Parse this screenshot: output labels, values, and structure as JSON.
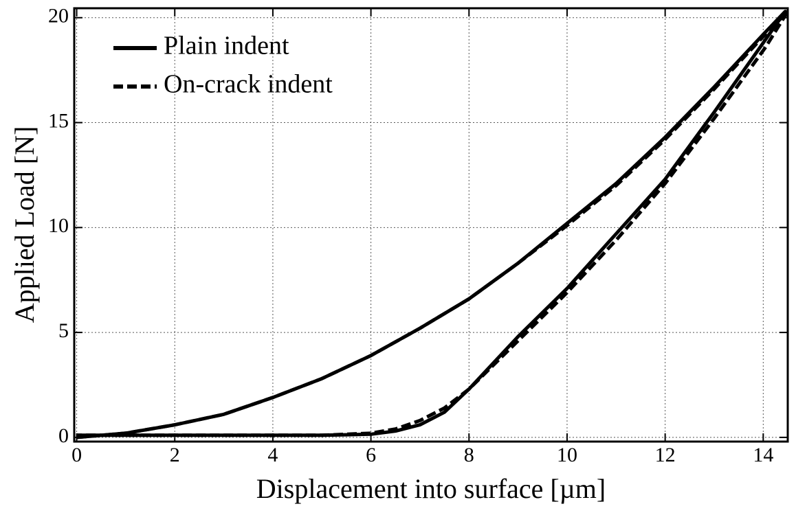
{
  "chart_data": {
    "type": "line",
    "xlabel": "Displacement into surface [µm]",
    "ylabel": "Applied Load [N]",
    "xlim": [
      -0.05,
      14.5
    ],
    "ylim": [
      -0.2,
      20.45
    ],
    "xticks": [
      0,
      2,
      4,
      6,
      8,
      10,
      12,
      14
    ],
    "yticks": [
      0,
      5,
      10,
      15,
      20
    ],
    "grid": true,
    "legend": "upper left",
    "series": [
      {
        "name": "Plain indent",
        "color": "#000000",
        "dash": "solid",
        "x": [
          0,
          1,
          2,
          3,
          4,
          5,
          6,
          7,
          8,
          9,
          10,
          11,
          12,
          13,
          14,
          14.45,
          14,
          13,
          12,
          11,
          10,
          9,
          8,
          7.5,
          7,
          6.5,
          6,
          5,
          3,
          0
        ],
        "values": [
          0,
          0.2,
          0.6,
          1.1,
          1.9,
          2.8,
          3.9,
          5.2,
          6.6,
          8.3,
          10.2,
          12.1,
          14.3,
          16.7,
          19.2,
          20.3,
          18.8,
          15.5,
          12.3,
          9.7,
          7.1,
          4.8,
          2.3,
          1.2,
          0.6,
          0.3,
          0.15,
          0.1,
          0.1,
          0.1
        ]
      },
      {
        "name": "On-crack indent",
        "color": "#000000",
        "dash": "dashed",
        "x": [
          0,
          1,
          2,
          3,
          4,
          5,
          6,
          7,
          8,
          9,
          10,
          11,
          12,
          13,
          14,
          14.5,
          14.05,
          13,
          12,
          11,
          10,
          9,
          8,
          7.5,
          7,
          6.5,
          6,
          5,
          3,
          0
        ],
        "values": [
          0,
          0.2,
          0.6,
          1.1,
          1.9,
          2.8,
          3.9,
          5.2,
          6.6,
          8.3,
          10.1,
          12.0,
          14.2,
          16.6,
          19.1,
          20.3,
          18.6,
          15.2,
          12.1,
          9.4,
          6.9,
          4.6,
          2.3,
          1.4,
          0.8,
          0.4,
          0.2,
          0.1,
          0.1,
          0.1
        ]
      }
    ]
  }
}
